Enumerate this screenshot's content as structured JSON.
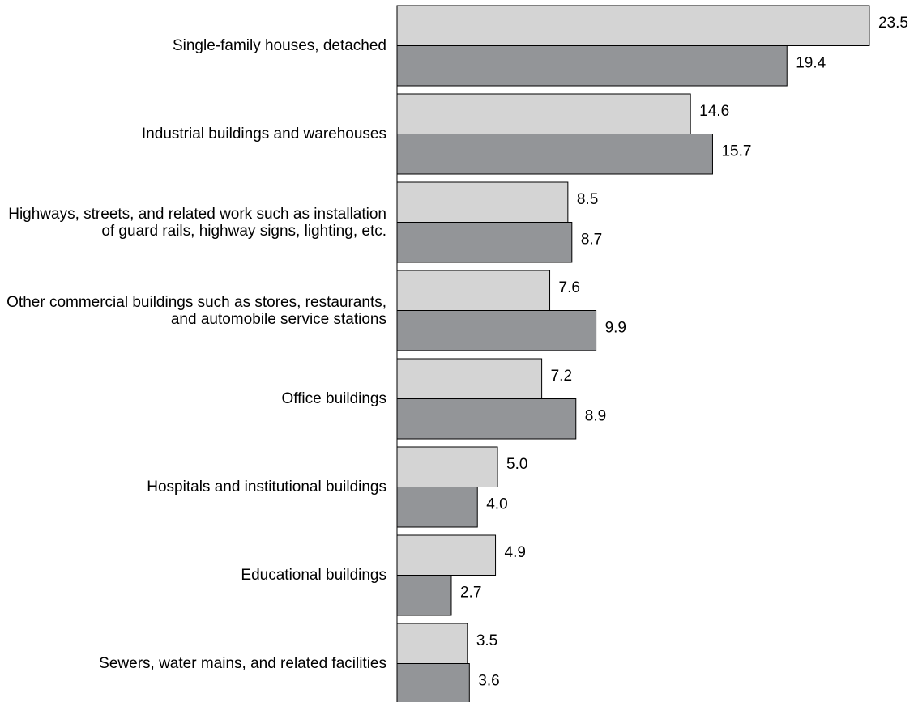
{
  "chart_data": {
    "type": "hbar",
    "categories": [
      "Single-family houses, detached",
      "Industrial buildings and warehouses",
      "Highways, streets, and related work such as installation of guard rails, highway signs, lighting, etc.",
      "Other commercial buildings such as stores, restaurants, and automobile service stations",
      "Office buildings",
      "Hospitals and institutional buildings",
      "Educational buildings",
      "Sewers, water mains, and related facilities"
    ],
    "series": [
      {
        "color": "#d4d4d4",
        "values": [
          23.5,
          14.6,
          8.5,
          7.6,
          7.2,
          5.0,
          4.9,
          3.5
        ],
        "value_labels": [
          "23.5",
          "14.6",
          "8.5",
          "7.6",
          "7.2",
          "5.0",
          "4.9",
          "3.5"
        ]
      },
      {
        "color": "#939598",
        "values": [
          19.4,
          15.7,
          8.7,
          9.9,
          8.9,
          4.0,
          2.7,
          3.6
        ],
        "value_labels": [
          "19.4",
          "15.7",
          "8.7",
          "9.9",
          "8.9",
          "4.0",
          "2.7",
          "3.6"
        ]
      }
    ],
    "xlim": [
      0,
      25.8
    ]
  }
}
